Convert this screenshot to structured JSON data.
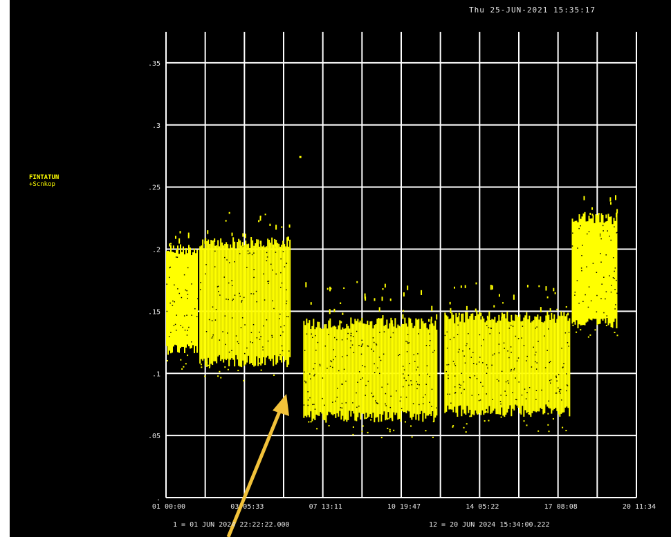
{
  "header": {
    "timestamp": "Thu 25-JUN-2021 15:35:17"
  },
  "colors": {
    "background": "#000000",
    "grid": "#ffffff",
    "data": "#ffff00",
    "annotation_arrow": "#f2c23a",
    "text": "#e8e8e8"
  },
  "footer": {
    "left": "1 = 01 JUN 2024 22:22:22.000",
    "right": "12 = 20 JUN 2024 15:34:00.222"
  },
  "chart_data": {
    "type": "scatter",
    "title": "",
    "ylabel_line1": "FINTATUN",
    "ylabel_line2": "+Scnkop",
    "ylim": [
      0,
      0.375
    ],
    "yticks": [
      0,
      0.05,
      0.1,
      0.15,
      0.2,
      0.25,
      0.3,
      0.35
    ],
    "ytick_labels": [
      ".",
      ".05",
      ".1",
      ".15",
      ".2",
      ".25",
      ".3",
      ".35"
    ],
    "grid": true,
    "x_tick_labels": [
      "01 00:00",
      "03 05:33",
      "07 13:11",
      "10 19:47",
      "14 05:22",
      "17 08:08",
      "20 11:34"
    ],
    "segments": [
      {
        "x_from": 0.0,
        "x_to": 0.8,
        "y_low": 0.12,
        "y_high": 0.2,
        "spike_max": 0.215
      },
      {
        "x_from": 0.85,
        "x_to": 3.15,
        "y_low": 0.11,
        "y_high": 0.205,
        "spike_max": 0.23
      },
      {
        "x_from": 3.5,
        "x_to": 6.9,
        "y_low": 0.065,
        "y_high": 0.14,
        "spike_max": 0.175
      },
      {
        "x_from": 7.1,
        "x_to": 10.3,
        "y_low": 0.07,
        "y_high": 0.145,
        "spike_max": 0.175
      },
      {
        "x_from": 10.35,
        "x_to": 11.5,
        "y_low": 0.14,
        "y_high": 0.225,
        "spike_max": 0.245
      }
    ],
    "outlier": {
      "x": 3.4,
      "y": 0.275
    }
  }
}
